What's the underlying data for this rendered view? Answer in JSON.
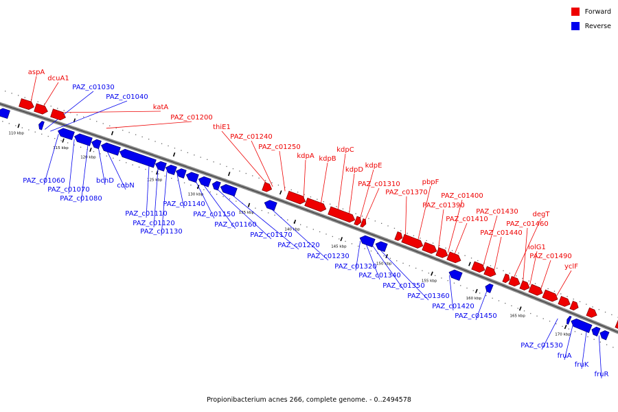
{
  "legend": {
    "forward": {
      "label": "Forward",
      "color": "#ee0000"
    },
    "reverse": {
      "label": "Reverse",
      "color": "#0000ee"
    }
  },
  "caption": "Propionibacterium acnes 266, complete genome. - 0..2494578",
  "ticks": [
    {
      "label": "110 kbp",
      "kb": 110
    },
    {
      "label": "115 kbp",
      "kb": 115
    },
    {
      "label": "120 kbp",
      "kb": 120
    },
    {
      "label": "125 kbp",
      "kb": 125
    },
    {
      "label": "130 kbp",
      "kb": 130
    },
    {
      "label": "135 kbp",
      "kb": 135
    },
    {
      "label": "140 kbp",
      "kb": 140
    },
    {
      "label": "145 kbp",
      "kb": 145
    },
    {
      "label": "150 kbp",
      "kb": 150
    },
    {
      "label": "155 kbp",
      "kb": 155
    },
    {
      "label": "160 kbp",
      "kb": 160
    },
    {
      "label": "165 kbp",
      "kb": 165
    },
    {
      "label": "170 kbp",
      "kb": 170
    }
  ],
  "forward_genes": [
    {
      "name": "aspA"
    },
    {
      "name": "dcuA1"
    },
    {
      "name": "katA"
    },
    {
      "name": "PAZ_c01200"
    },
    {
      "name": "thiE1"
    },
    {
      "name": "PAZ_c01240"
    },
    {
      "name": "PAZ_c01250"
    },
    {
      "name": "kdpA"
    },
    {
      "name": "kdpB"
    },
    {
      "name": "kdpC"
    },
    {
      "name": "kdpD"
    },
    {
      "name": "kdpE"
    },
    {
      "name": "PAZ_c01310"
    },
    {
      "name": "PAZ_c01370"
    },
    {
      "name": "pbpF"
    },
    {
      "name": "PAZ_c01390"
    },
    {
      "name": "PAZ_c01400"
    },
    {
      "name": "PAZ_c01410"
    },
    {
      "name": "PAZ_c01430"
    },
    {
      "name": "PAZ_c01440"
    },
    {
      "name": "degT"
    },
    {
      "name": "PAZ_c01460"
    },
    {
      "name": "iolG1"
    },
    {
      "name": "PAZ_c01490"
    },
    {
      "name": "yclF"
    }
  ],
  "reverse_genes": [
    {
      "name": "PAZ_c01030"
    },
    {
      "name": "PAZ_c01040"
    },
    {
      "name": "PAZ_c01060"
    },
    {
      "name": "PAZ_c01070"
    },
    {
      "name": "PAZ_c01080"
    },
    {
      "name": "bchD"
    },
    {
      "name": "cobN"
    },
    {
      "name": "PAZ_c01110"
    },
    {
      "name": "PAZ_c01120"
    },
    {
      "name": "PAZ_c01130"
    },
    {
      "name": "PAZ_c01140"
    },
    {
      "name": "PAZ_c01150"
    },
    {
      "name": "PAZ_c01160"
    },
    {
      "name": "PAZ_c01170"
    },
    {
      "name": "PAZ_c01220"
    },
    {
      "name": "PAZ_c01230"
    },
    {
      "name": "PAZ_c01320"
    },
    {
      "name": "PAZ_c01340"
    },
    {
      "name": "PAZ_c01350"
    },
    {
      "name": "PAZ_c01360"
    },
    {
      "name": "PAZ_c01420"
    },
    {
      "name": "PAZ_c01450"
    },
    {
      "name": "PAZ_c01530"
    },
    {
      "name": "fruA"
    },
    {
      "name": "fruK"
    },
    {
      "name": "fruR"
    }
  ]
}
